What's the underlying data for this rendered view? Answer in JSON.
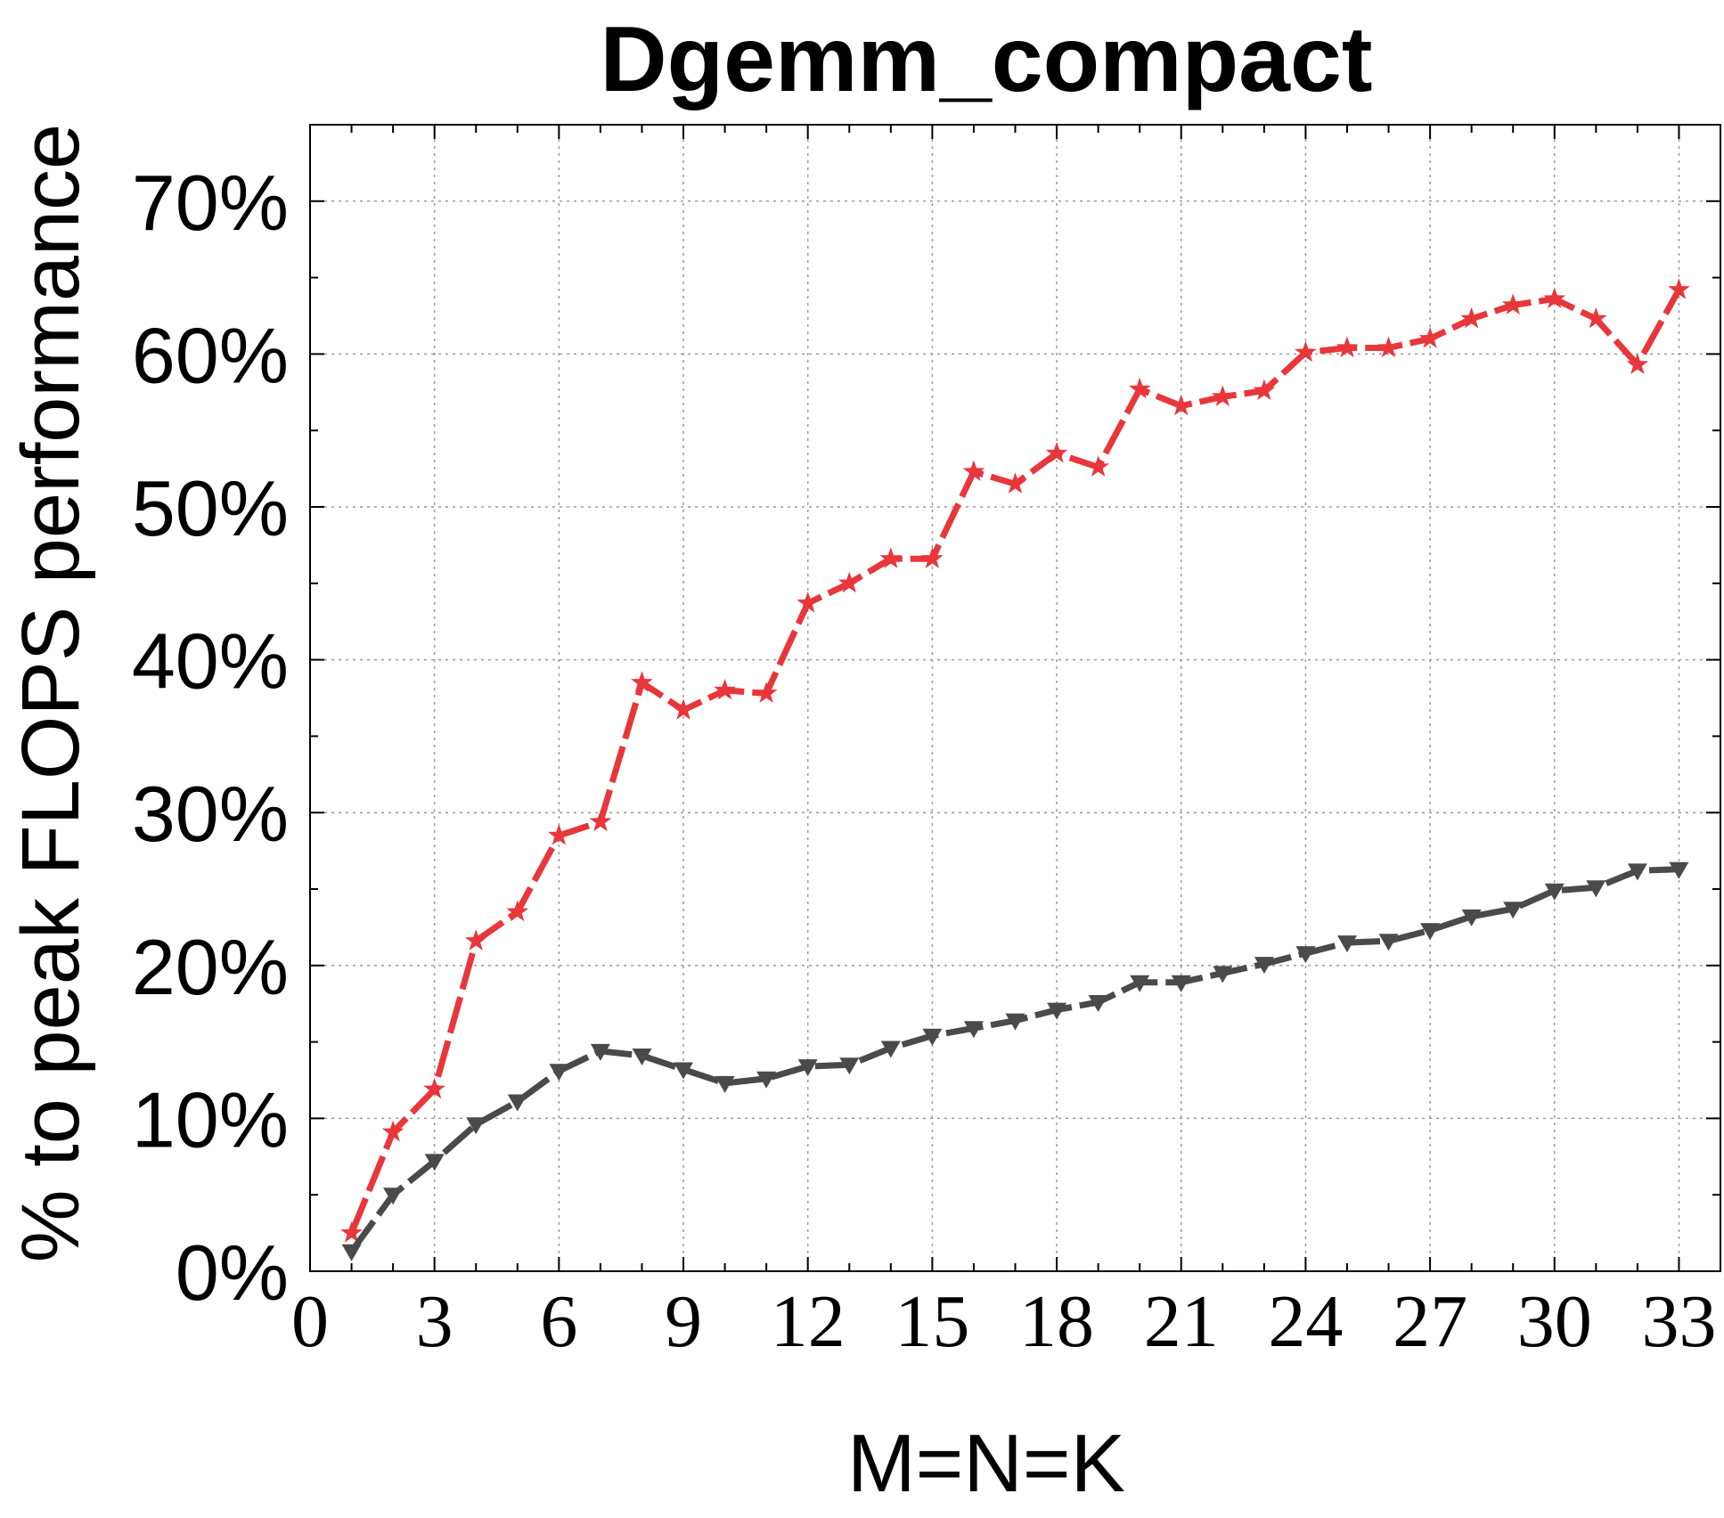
{
  "chart_data": {
    "type": "line",
    "title": "Dgemm_compact",
    "xlabel": "M=N=K",
    "ylabel": "% to peak FLOPS performance",
    "xlim": [
      0,
      34
    ],
    "ylim": [
      0,
      75
    ],
    "xticks": [
      0,
      3,
      6,
      9,
      12,
      15,
      18,
      21,
      24,
      27,
      30,
      33
    ],
    "xtick_labels": [
      "0",
      "3",
      "6",
      "9",
      "12",
      "15",
      "18",
      "21",
      "24",
      "27",
      "30",
      "33"
    ],
    "yticks": [
      0,
      10,
      20,
      30,
      40,
      50,
      60,
      70
    ],
    "ytick_labels": [
      "0%",
      "10%",
      "20%",
      "30%",
      "40%",
      "50%",
      "60%",
      "70%"
    ],
    "grid": true,
    "x": [
      1,
      2,
      3,
      4,
      5,
      6,
      7,
      8,
      9,
      10,
      11,
      12,
      13,
      14,
      15,
      16,
      17,
      18,
      19,
      20,
      21,
      22,
      23,
      24,
      25,
      26,
      27,
      28,
      29,
      30,
      31,
      32,
      33
    ],
    "series": [
      {
        "color": "#e8363b",
        "marker": "star",
        "values": [
          2.5,
          9.1,
          11.9,
          21.6,
          23.5,
          28.5,
          29.4,
          38.5,
          36.7,
          38.0,
          37.8,
          43.7,
          45.0,
          46.6,
          46.6,
          52.3,
          51.5,
          53.5,
          52.6,
          57.7,
          56.6,
          57.2,
          57.6,
          60.1,
          60.4,
          60.4,
          61.0,
          62.3,
          63.2,
          63.6,
          62.3,
          59.3,
          64.2
        ]
      },
      {
        "color": "#4a4a4a",
        "marker": "triangle-down",
        "values": [
          1.3,
          5.0,
          7.2,
          9.6,
          11.1,
          13.1,
          14.4,
          14.1,
          13.2,
          12.3,
          12.6,
          13.4,
          13.5,
          14.6,
          15.4,
          15.9,
          16.4,
          17.1,
          17.6,
          18.9,
          18.9,
          19.5,
          20.1,
          20.8,
          21.5,
          21.6,
          22.3,
          23.2,
          23.7,
          24.9,
          25.1,
          26.2,
          26.3
        ]
      }
    ]
  }
}
